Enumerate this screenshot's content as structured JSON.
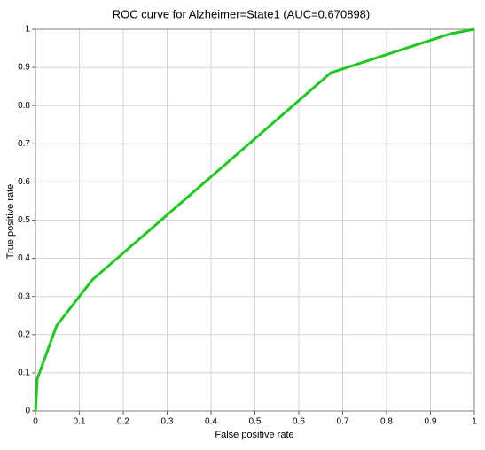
{
  "chart_data": {
    "type": "line",
    "title": "ROC curve for Alzheimer=State1 (AUC=0.670898)",
    "x_label": "False positive rate",
    "y_label": "True positive rate",
    "x": [
      0,
      0.002,
      0.004,
      0.048,
      0.129,
      0.673,
      0.945,
      1
    ],
    "values": [
      0,
      0.04,
      0.084,
      0.223,
      0.343,
      0.886,
      0.988,
      1
    ],
    "color": "#1ec81e",
    "xlim": [
      0,
      1
    ],
    "xticks": [
      0,
      0.1,
      0.2,
      0.3,
      0.4,
      0.5,
      0.6,
      0.7,
      0.8,
      0.9,
      1
    ],
    "ylim": [
      0,
      1
    ],
    "yticks": [
      0,
      0.1,
      0.2,
      0.3,
      0.4,
      0.5,
      0.6,
      0.7,
      0.8,
      0.9,
      1
    ],
    "grid": true
  }
}
